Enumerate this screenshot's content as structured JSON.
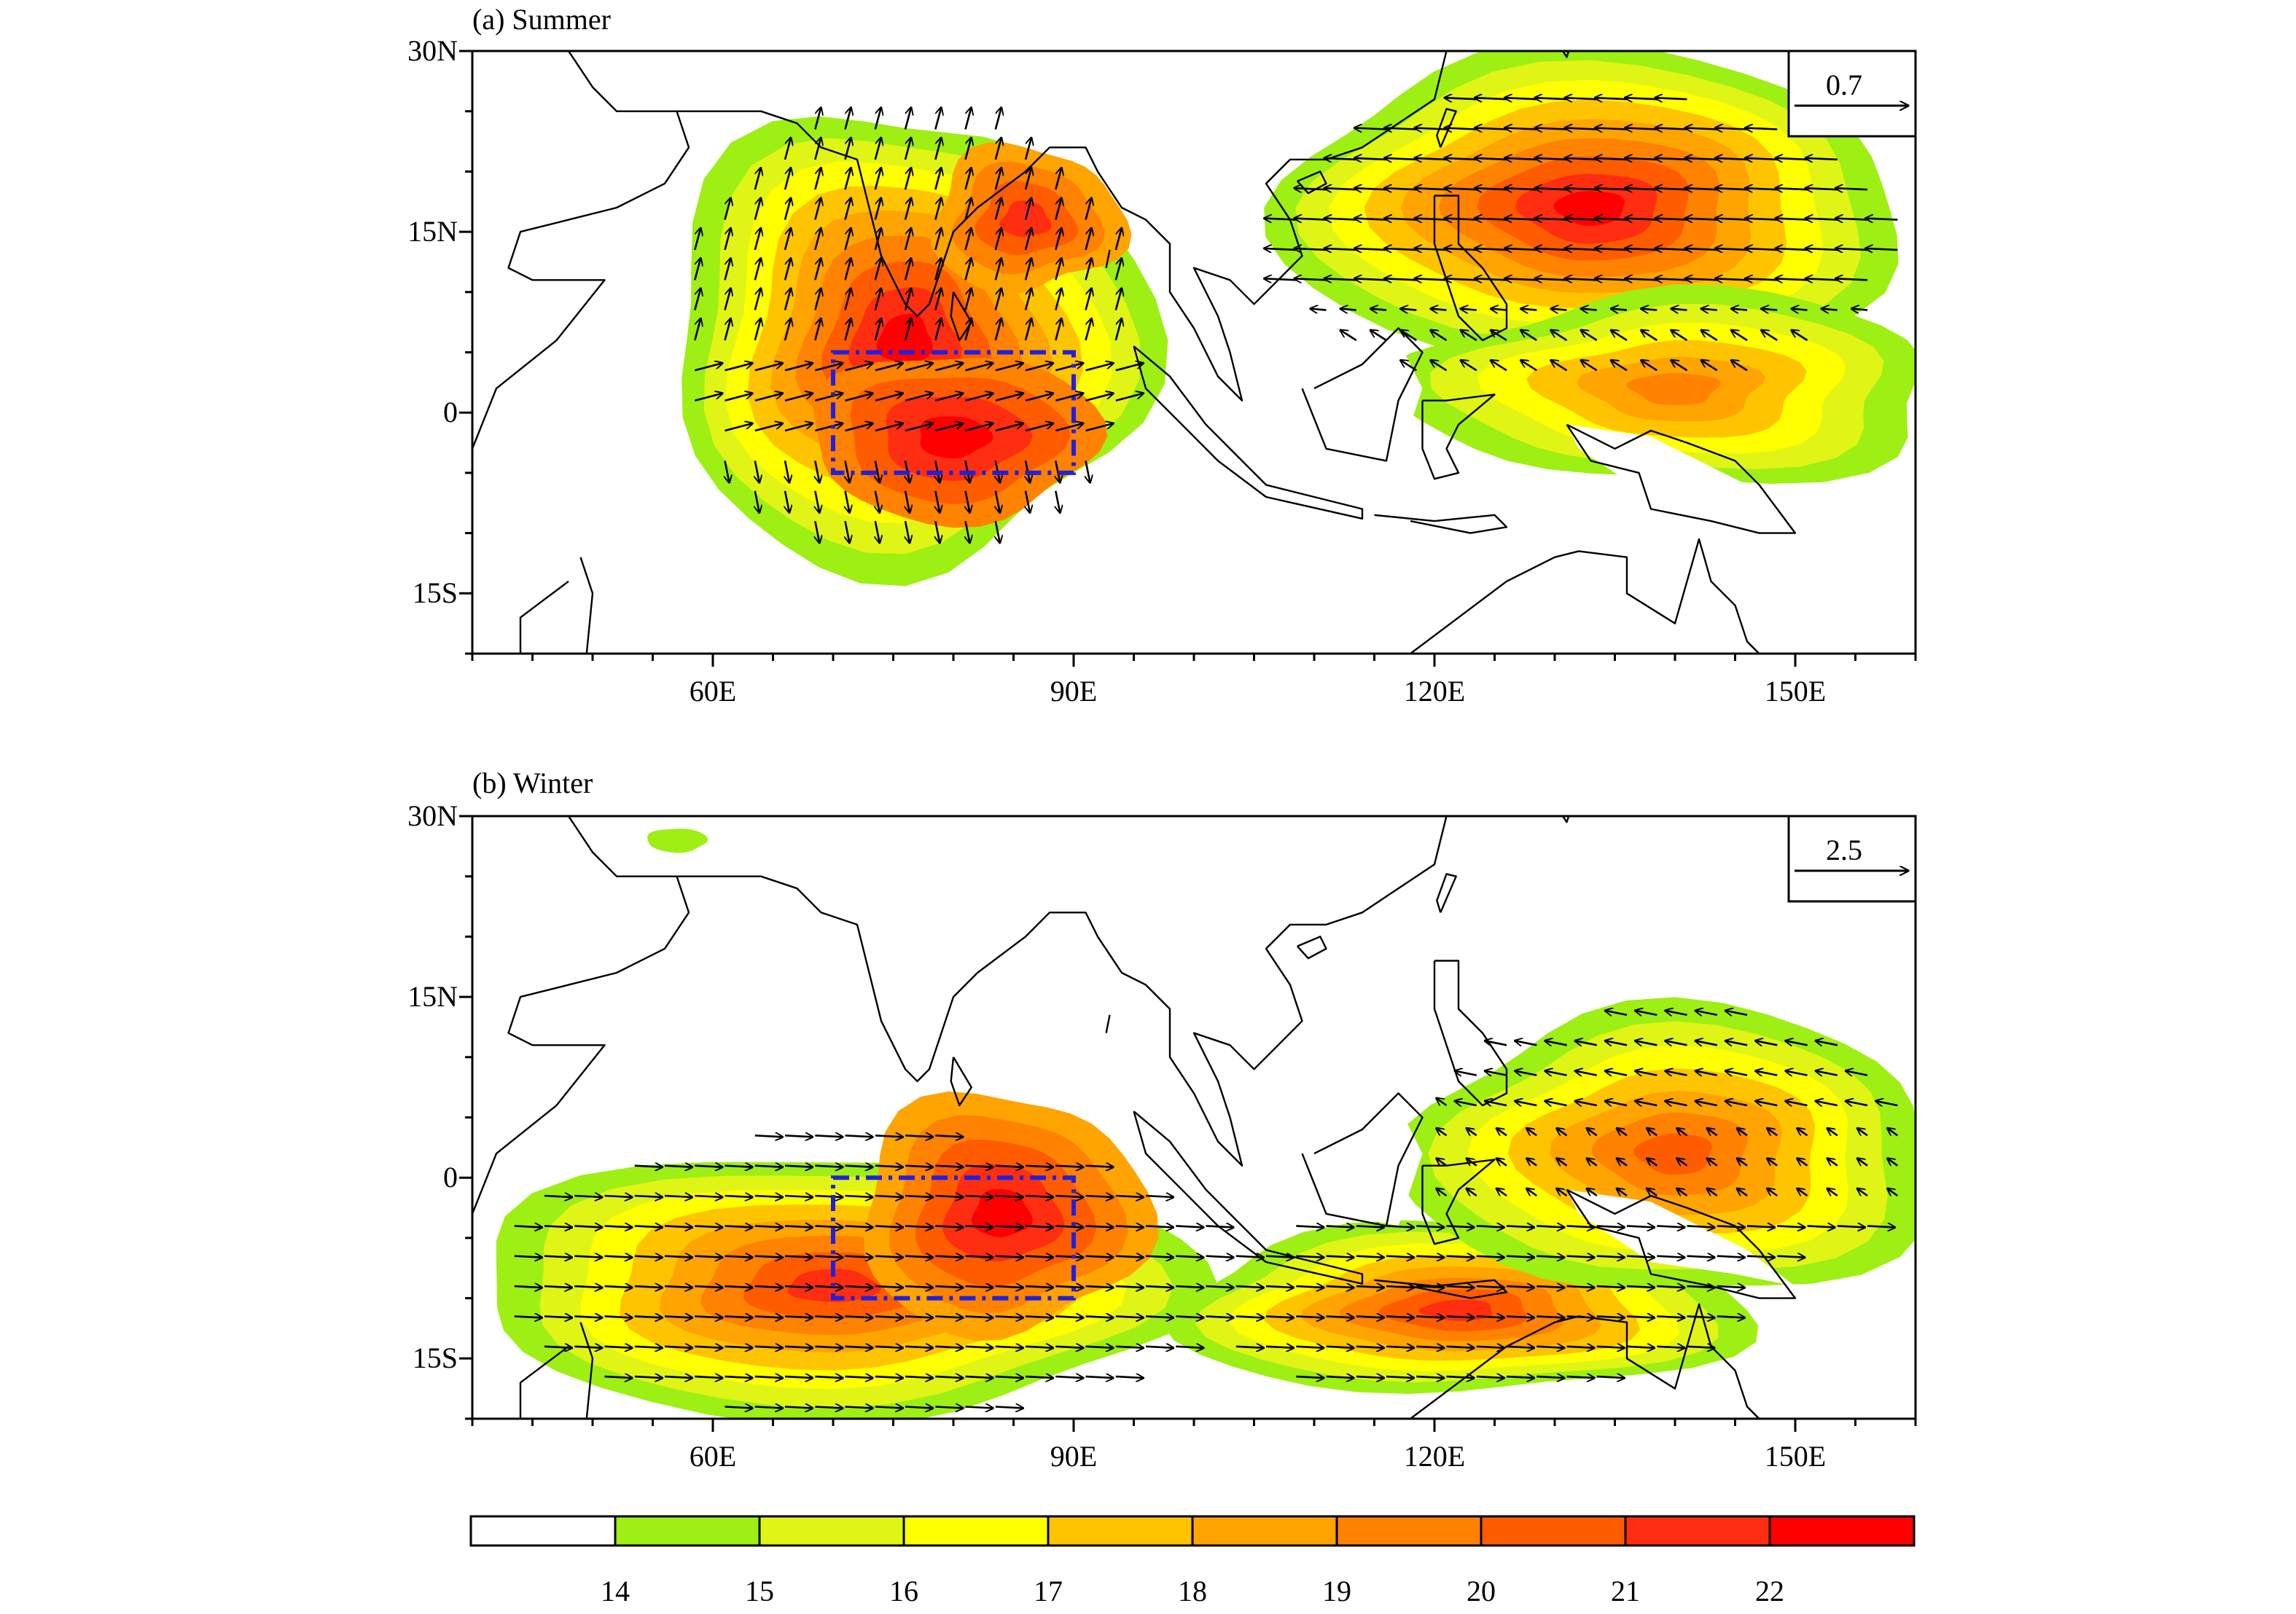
{
  "colors": {
    "levels": [
      "#ffffff",
      "#9eef13",
      "#e0f516",
      "#ffff00",
      "#ffc400",
      "#ffa400",
      "#ff8200",
      "#ff5c00",
      "#ff2e10",
      "#ff0000"
    ],
    "box": "#2020e0"
  },
  "panels": [
    {
      "id": "summer",
      "title": "(a) Summer",
      "ylabels": [
        "30N",
        "15N",
        "0",
        "15S"
      ],
      "xlabels": [
        "60E",
        "90E",
        "120E",
        "150E"
      ],
      "ref_vector": "0.7",
      "box": {
        "lon": [
          70,
          90
        ],
        "lat": [
          -5,
          5
        ]
      }
    },
    {
      "id": "winter",
      "title": "(b) Winter",
      "ylabels": [
        "30N",
        "15N",
        "0",
        "15S"
      ],
      "xlabels": [
        "60E",
        "90E",
        "120E",
        "150E"
      ],
      "ref_vector": "2.5",
      "box": {
        "lon": [
          70,
          90
        ],
        "lat": [
          -10,
          0
        ]
      }
    }
  ],
  "chart_data": [
    {
      "type": "heatmap",
      "title": "(a) Summer",
      "x_range": [
        40,
        160
      ],
      "y_range": [
        -20,
        30
      ],
      "xticks": [
        60,
        90,
        120,
        150
      ],
      "yticks": [
        30,
        15,
        0,
        -15
      ],
      "reference_vector": 0.7,
      "highlight_box": {
        "lon": [
          70,
          90
        ],
        "lat": [
          -5,
          5
        ]
      }
    },
    {
      "type": "heatmap",
      "title": "(b) Winter",
      "x_range": [
        40,
        160
      ],
      "y_range": [
        -20,
        30
      ],
      "xticks": [
        60,
        90,
        120,
        150
      ],
      "yticks": [
        30,
        15,
        0,
        -15
      ],
      "reference_vector": 2.5,
      "highlight_box": {
        "lon": [
          70,
          90
        ],
        "lat": [
          -10,
          0
        ]
      }
    }
  ],
  "colorbar": {
    "labels": [
      "14",
      "15",
      "16",
      "17",
      "18",
      "19",
      "20",
      "21",
      "22"
    ]
  }
}
